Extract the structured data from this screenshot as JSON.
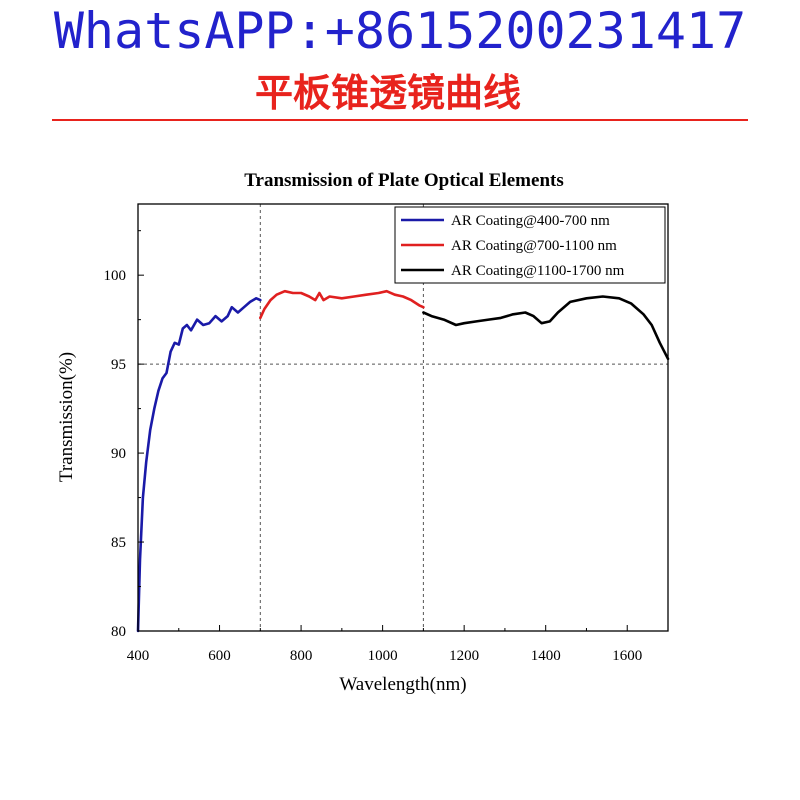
{
  "header": {
    "contact": "WhatsAPP:+8615200231417",
    "subtitle": "平板锥透镜曲线",
    "accent_color": "#e8231d",
    "contact_color": "#2222cc"
  },
  "chart_data": {
    "type": "line",
    "title": "Transmission of Plate Optical Elements",
    "xlabel": "Wavelength(nm)",
    "ylabel": "Transmission(%)",
    "xlim": [
      400,
      1700
    ],
    "ylim": [
      80,
      104
    ],
    "xticks": [
      400,
      600,
      800,
      1000,
      1200,
      1400,
      1600
    ],
    "yticks": [
      80,
      85,
      90,
      95,
      100
    ],
    "reference_lines": {
      "x": [
        700,
        1100
      ],
      "y": [
        95
      ]
    },
    "legend_position": "top-right",
    "series": [
      {
        "name": "AR Coating@400-700 nm",
        "color": "#1a1aa8",
        "points": [
          [
            400,
            80
          ],
          [
            405,
            84
          ],
          [
            412,
            87.5
          ],
          [
            420,
            89.5
          ],
          [
            430,
            91.3
          ],
          [
            440,
            92.5
          ],
          [
            450,
            93.5
          ],
          [
            460,
            94.2
          ],
          [
            470,
            94.5
          ],
          [
            480,
            95.7
          ],
          [
            490,
            96.2
          ],
          [
            500,
            96.1
          ],
          [
            510,
            97
          ],
          [
            520,
            97.2
          ],
          [
            530,
            96.9
          ],
          [
            545,
            97.5
          ],
          [
            560,
            97.2
          ],
          [
            575,
            97.3
          ],
          [
            590,
            97.7
          ],
          [
            605,
            97.4
          ],
          [
            620,
            97.7
          ],
          [
            630,
            98.2
          ],
          [
            645,
            97.9
          ],
          [
            660,
            98.2
          ],
          [
            675,
            98.5
          ],
          [
            690,
            98.7
          ],
          [
            700,
            98.6
          ]
        ]
      },
      {
        "name": "AR Coating@700-1100 nm",
        "color": "#e02020",
        "points": [
          [
            700,
            97.6
          ],
          [
            710,
            98.1
          ],
          [
            725,
            98.6
          ],
          [
            740,
            98.9
          ],
          [
            760,
            99.1
          ],
          [
            780,
            99
          ],
          [
            800,
            99
          ],
          [
            820,
            98.8
          ],
          [
            835,
            98.6
          ],
          [
            845,
            99
          ],
          [
            855,
            98.6
          ],
          [
            870,
            98.8
          ],
          [
            900,
            98.7
          ],
          [
            930,
            98.8
          ],
          [
            960,
            98.9
          ],
          [
            990,
            99
          ],
          [
            1010,
            99.1
          ],
          [
            1030,
            98.9
          ],
          [
            1050,
            98.8
          ],
          [
            1070,
            98.6
          ],
          [
            1090,
            98.3
          ],
          [
            1100,
            98.2
          ]
        ]
      },
      {
        "name": "AR Coating@1100-1700 nm",
        "color": "#000000",
        "points": [
          [
            1100,
            97.9
          ],
          [
            1120,
            97.7
          ],
          [
            1150,
            97.5
          ],
          [
            1180,
            97.2
          ],
          [
            1200,
            97.3
          ],
          [
            1230,
            97.4
          ],
          [
            1260,
            97.5
          ],
          [
            1290,
            97.6
          ],
          [
            1320,
            97.8
          ],
          [
            1350,
            97.9
          ],
          [
            1370,
            97.7
          ],
          [
            1390,
            97.3
          ],
          [
            1410,
            97.4
          ],
          [
            1430,
            97.9
          ],
          [
            1460,
            98.5
          ],
          [
            1500,
            98.7
          ],
          [
            1540,
            98.8
          ],
          [
            1580,
            98.7
          ],
          [
            1610,
            98.4
          ],
          [
            1640,
            97.8
          ],
          [
            1660,
            97.2
          ],
          [
            1680,
            96.2
          ],
          [
            1700,
            95.3
          ]
        ]
      }
    ]
  }
}
